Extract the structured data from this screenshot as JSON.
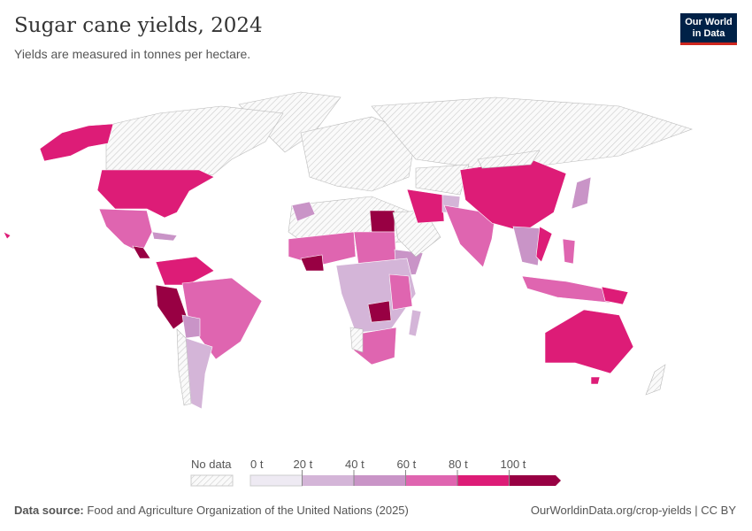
{
  "header": {
    "title": "Sugar cane yields, 2024",
    "subtitle": "Yields are measured in tonnes per hectare."
  },
  "logo": {
    "text": "Our World in Data",
    "line1": "Our World",
    "line2": "in Data"
  },
  "legend": {
    "no_data_label": "No data",
    "ticks": [
      "0 t",
      "20 t",
      "40 t",
      "60 t",
      "80 t",
      "100 t"
    ],
    "bins": [
      {
        "range": [
          0,
          20
        ],
        "color": "#eeeaf3"
      },
      {
        "range": [
          20,
          40
        ],
        "color": "#d4b5d8"
      },
      {
        "range": [
          40,
          60
        ],
        "color": "#c994c7"
      },
      {
        "range": [
          60,
          80
        ],
        "color": "#df65b0"
      },
      {
        "range": [
          80,
          100
        ],
        "color": "#dd1c77"
      },
      {
        "range": [
          100,
          null
        ],
        "color": "#980043"
      }
    ]
  },
  "footer": {
    "source_label": "Data source:",
    "source": "Food and Agriculture Organization of the United Nations (2025)",
    "link": "OurWorldinData.org/crop-yields | CC BY"
  }
}
